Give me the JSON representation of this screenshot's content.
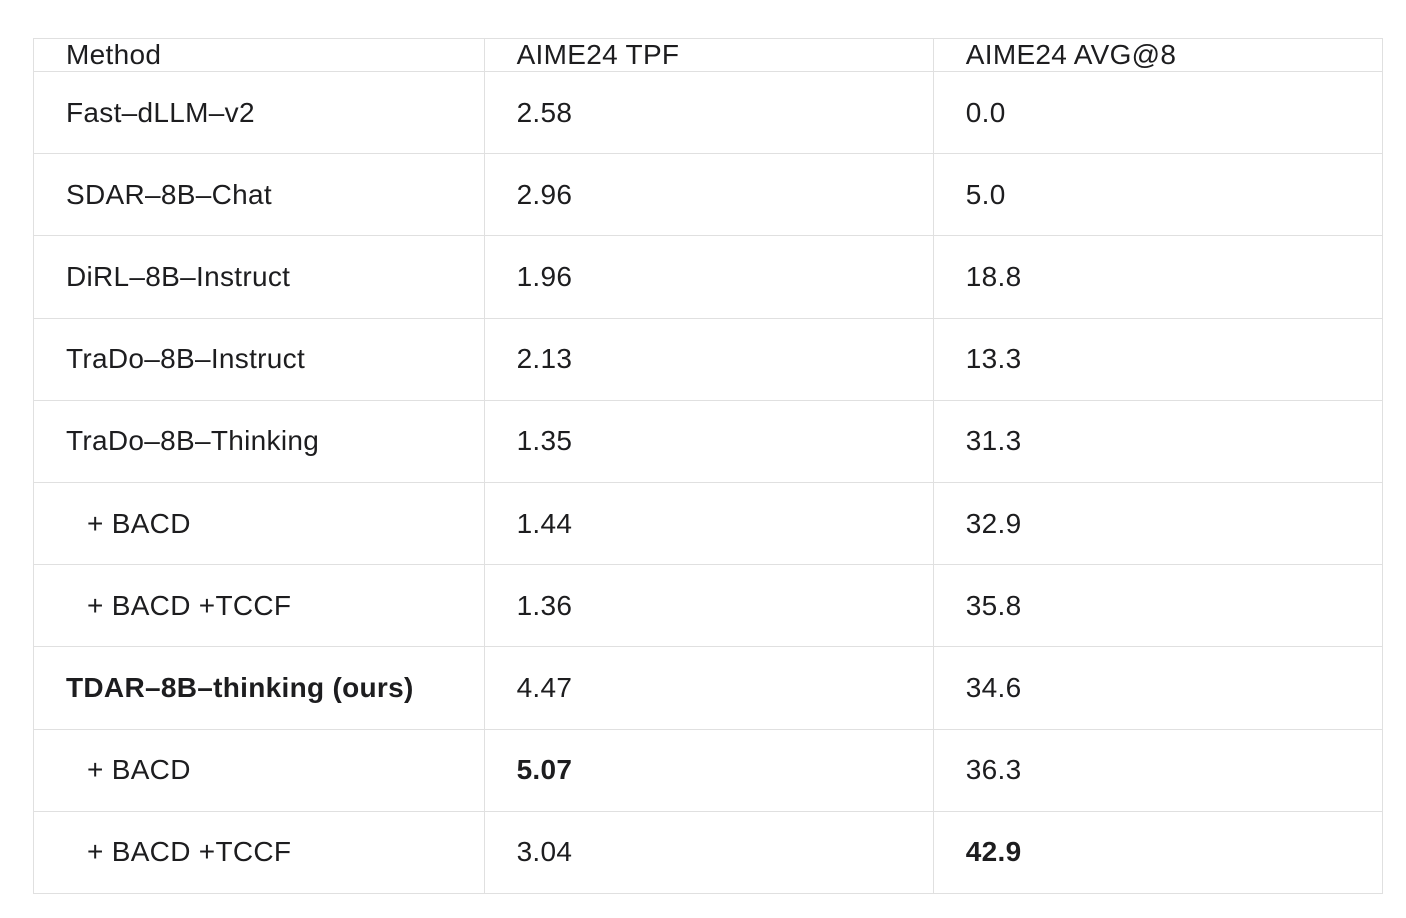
{
  "table": {
    "columns": [
      "Method",
      "AIME24 TPF",
      "AIME24 AVG@8"
    ],
    "rows": [
      {
        "method": "Fast–dLLM–v2",
        "tpf": "2.58",
        "avg8": "0.0",
        "indent": false,
        "bold_method": false,
        "bold_tpf": false,
        "bold_avg8": false
      },
      {
        "method": "SDAR–8B–Chat",
        "tpf": "2.96",
        "avg8": "5.0",
        "indent": false,
        "bold_method": false,
        "bold_tpf": false,
        "bold_avg8": false
      },
      {
        "method": "DiRL–8B–Instruct",
        "tpf": "1.96",
        "avg8": "18.8",
        "indent": false,
        "bold_method": false,
        "bold_tpf": false,
        "bold_avg8": false
      },
      {
        "method": "TraDo–8B–Instruct",
        "tpf": "2.13",
        "avg8": "13.3",
        "indent": false,
        "bold_method": false,
        "bold_tpf": false,
        "bold_avg8": false
      },
      {
        "method": "TraDo–8B–Thinking",
        "tpf": "1.35",
        "avg8": "31.3",
        "indent": false,
        "bold_method": false,
        "bold_tpf": false,
        "bold_avg8": false
      },
      {
        "method": "+ BACD",
        "tpf": "1.44",
        "avg8": "32.9",
        "indent": true,
        "bold_method": false,
        "bold_tpf": false,
        "bold_avg8": false
      },
      {
        "method": "+ BACD +TCCF",
        "tpf": "1.36",
        "avg8": "35.8",
        "indent": true,
        "bold_method": false,
        "bold_tpf": false,
        "bold_avg8": false
      },
      {
        "method": "TDAR–8B–thinking (ours)",
        "tpf": "4.47",
        "avg8": "34.6",
        "indent": false,
        "bold_method": true,
        "bold_tpf": false,
        "bold_avg8": false
      },
      {
        "method": "+ BACD",
        "tpf": "5.07",
        "avg8": "36.3",
        "indent": true,
        "bold_method": false,
        "bold_tpf": true,
        "bold_avg8": false
      },
      {
        "method": "+ BACD +TCCF",
        "tpf": "3.04",
        "avg8": "42.9",
        "indent": true,
        "bold_method": false,
        "bold_tpf": false,
        "bold_avg8": true
      }
    ],
    "colors": {
      "text": "#1d1d1f",
      "border": "#e0e0e0",
      "background": "#ffffff"
    }
  }
}
